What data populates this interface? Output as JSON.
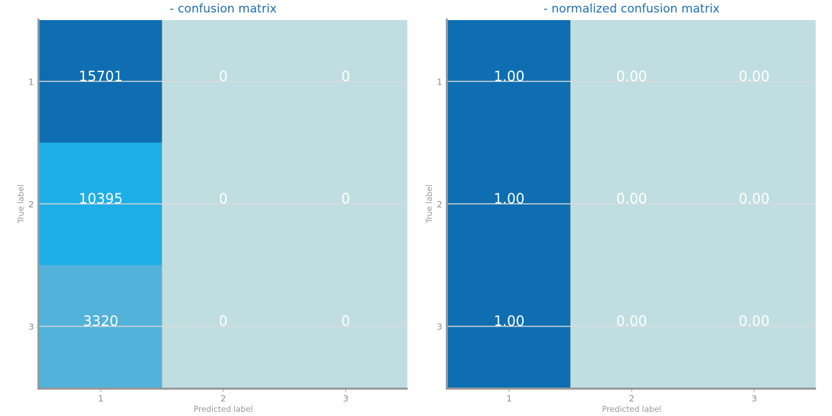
{
  "chart_data": [
    {
      "type": "heatmap",
      "title": "- confusion matrix",
      "xlabel": "Predicted label",
      "ylabel": "True label",
      "x_categories": [
        "1",
        "2",
        "3"
      ],
      "y_categories": [
        "1",
        "2",
        "3"
      ],
      "values": [
        [
          15701,
          0,
          0
        ],
        [
          10395,
          0,
          0
        ],
        [
          3320,
          0,
          0
        ]
      ],
      "labels": [
        [
          "15701",
          "0",
          "0"
        ],
        [
          "10395",
          "0",
          "0"
        ],
        [
          "3320",
          "0",
          "0"
        ]
      ],
      "colors": [
        [
          "#0e6eb1",
          "#c0dee2",
          "#c0dee2"
        ],
        [
          "#1eaee6",
          "#c0dee2",
          "#c0dee2"
        ],
        [
          "#52b2da",
          "#c0dee2",
          "#c0dee2"
        ]
      ],
      "grid": true
    },
    {
      "type": "heatmap",
      "title": "- normalized confusion matrix",
      "xlabel": "Predicted label",
      "ylabel": "True label",
      "x_categories": [
        "1",
        "2",
        "3"
      ],
      "y_categories": [
        "1",
        "2",
        "3"
      ],
      "values": [
        [
          1.0,
          0.0,
          0.0
        ],
        [
          1.0,
          0.0,
          0.0
        ],
        [
          1.0,
          0.0,
          0.0
        ]
      ],
      "labels": [
        [
          "1.00",
          "0.00",
          "0.00"
        ],
        [
          "1.00",
          "0.00",
          "0.00"
        ],
        [
          "1.00",
          "0.00",
          "0.00"
        ]
      ],
      "colors": [
        [
          "#0e6eb1",
          "#c0dee2",
          "#c0dee2"
        ],
        [
          "#0e6eb1",
          "#c0dee2",
          "#c0dee2"
        ],
        [
          "#0e6eb1",
          "#c0dee2",
          "#c0dee2"
        ]
      ],
      "grid": true
    }
  ],
  "style": {
    "axis_color": "#999999",
    "grid_color": "#d9d9d9",
    "title_color": "#1f6fb0"
  }
}
